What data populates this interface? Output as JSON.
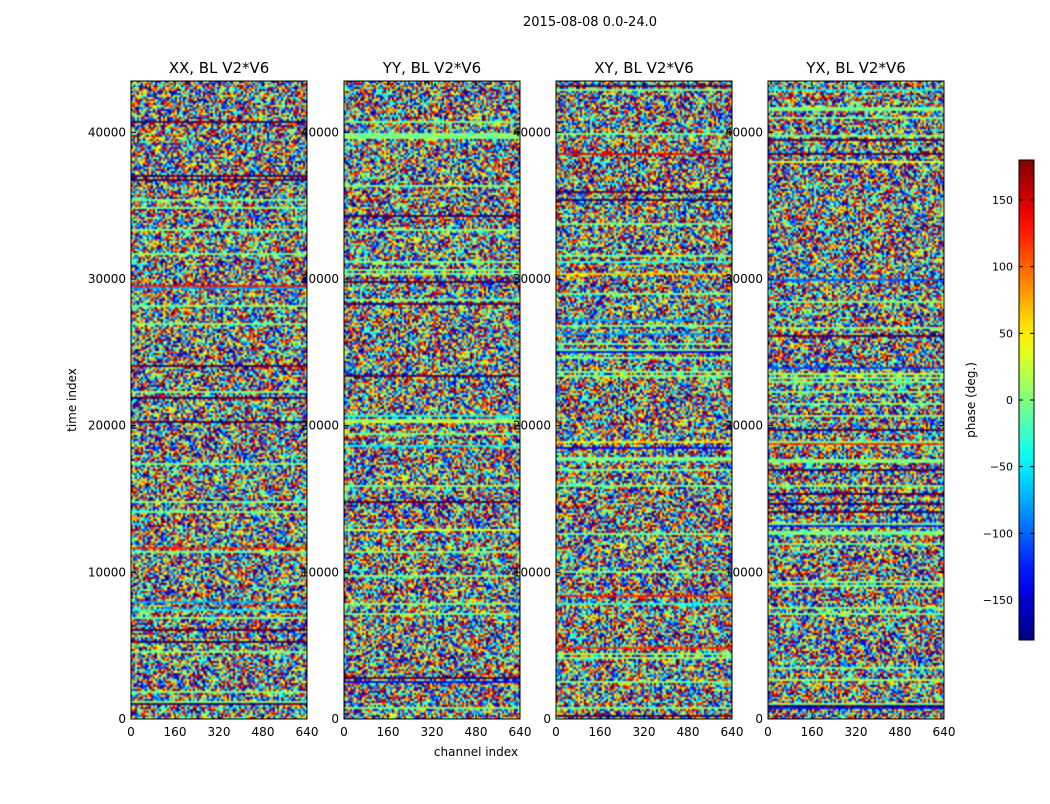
{
  "figure_title": "2015-08-08 0.0-24.0",
  "chart_data": {
    "type": "heatmap",
    "suptitle": "2015-08-08 0.0-24.0",
    "panels": [
      {
        "title": "XX, BL V2*V6"
      },
      {
        "title": "YY, BL V2*V6"
      },
      {
        "title": "XY, BL V2*V6"
      },
      {
        "title": "YX, BL V2*V6"
      }
    ],
    "xlabel": "channel index",
    "ylabel": "time index",
    "xlim": [
      0,
      640
    ],
    "ylim": [
      0,
      43500
    ],
    "xticks": [
      0,
      160,
      320,
      480,
      640
    ],
    "yticks": [
      0,
      10000,
      20000,
      30000,
      40000
    ],
    "colorbar": {
      "label": "phase (deg.)",
      "vmin": -180,
      "vmax": 180,
      "ticks": [
        -150,
        -100,
        -50,
        0,
        50,
        100,
        150
      ],
      "tick_labels": [
        "−150",
        "−100",
        "−50",
        "0",
        "50",
        "100",
        "150"
      ],
      "colormap": "jet",
      "colors": [
        "#00007f",
        "#0000ff",
        "#007fff",
        "#00ffff",
        "#7fff7f",
        "#ffff00",
        "#ff7f00",
        "#ff0000",
        "#7f0000"
      ]
    },
    "distribution": "phase noise with horizontal bands of coherent phase at specific time indices"
  }
}
